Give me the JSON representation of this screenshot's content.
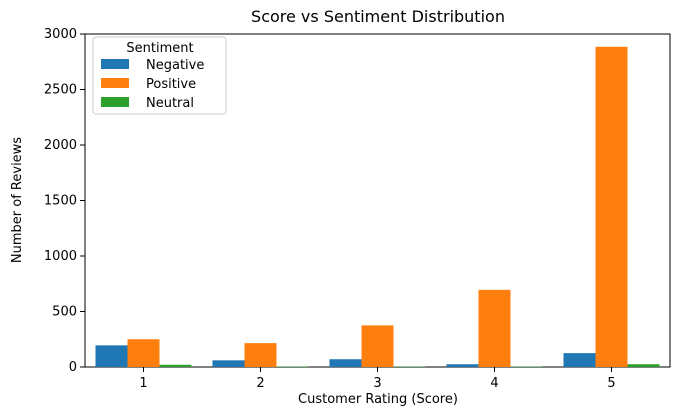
{
  "chart_data": {
    "type": "bar",
    "title": "Score vs Sentiment Distribution",
    "xlabel": "Customer Rating (Score)",
    "ylabel": "Number of Reviews",
    "categories": [
      "1",
      "2",
      "3",
      "4",
      "5"
    ],
    "series": [
      {
        "name": "Negative",
        "color": "#1f77b4",
        "values": [
          195,
          60,
          70,
          25,
          125
        ]
      },
      {
        "name": "Positive",
        "color": "#ff7f0e",
        "values": [
          250,
          215,
          375,
          695,
          2885
        ]
      },
      {
        "name": "Neutral",
        "color": "#2ca02c",
        "values": [
          20,
          5,
          5,
          5,
          25
        ]
      }
    ],
    "ylim": [
      0,
      3000
    ],
    "yticks": [
      "0",
      "500",
      "1000",
      "1500",
      "2000",
      "2500",
      "3000"
    ],
    "legend": {
      "title": "Sentiment",
      "placement": "top-left"
    },
    "grid": false
  }
}
